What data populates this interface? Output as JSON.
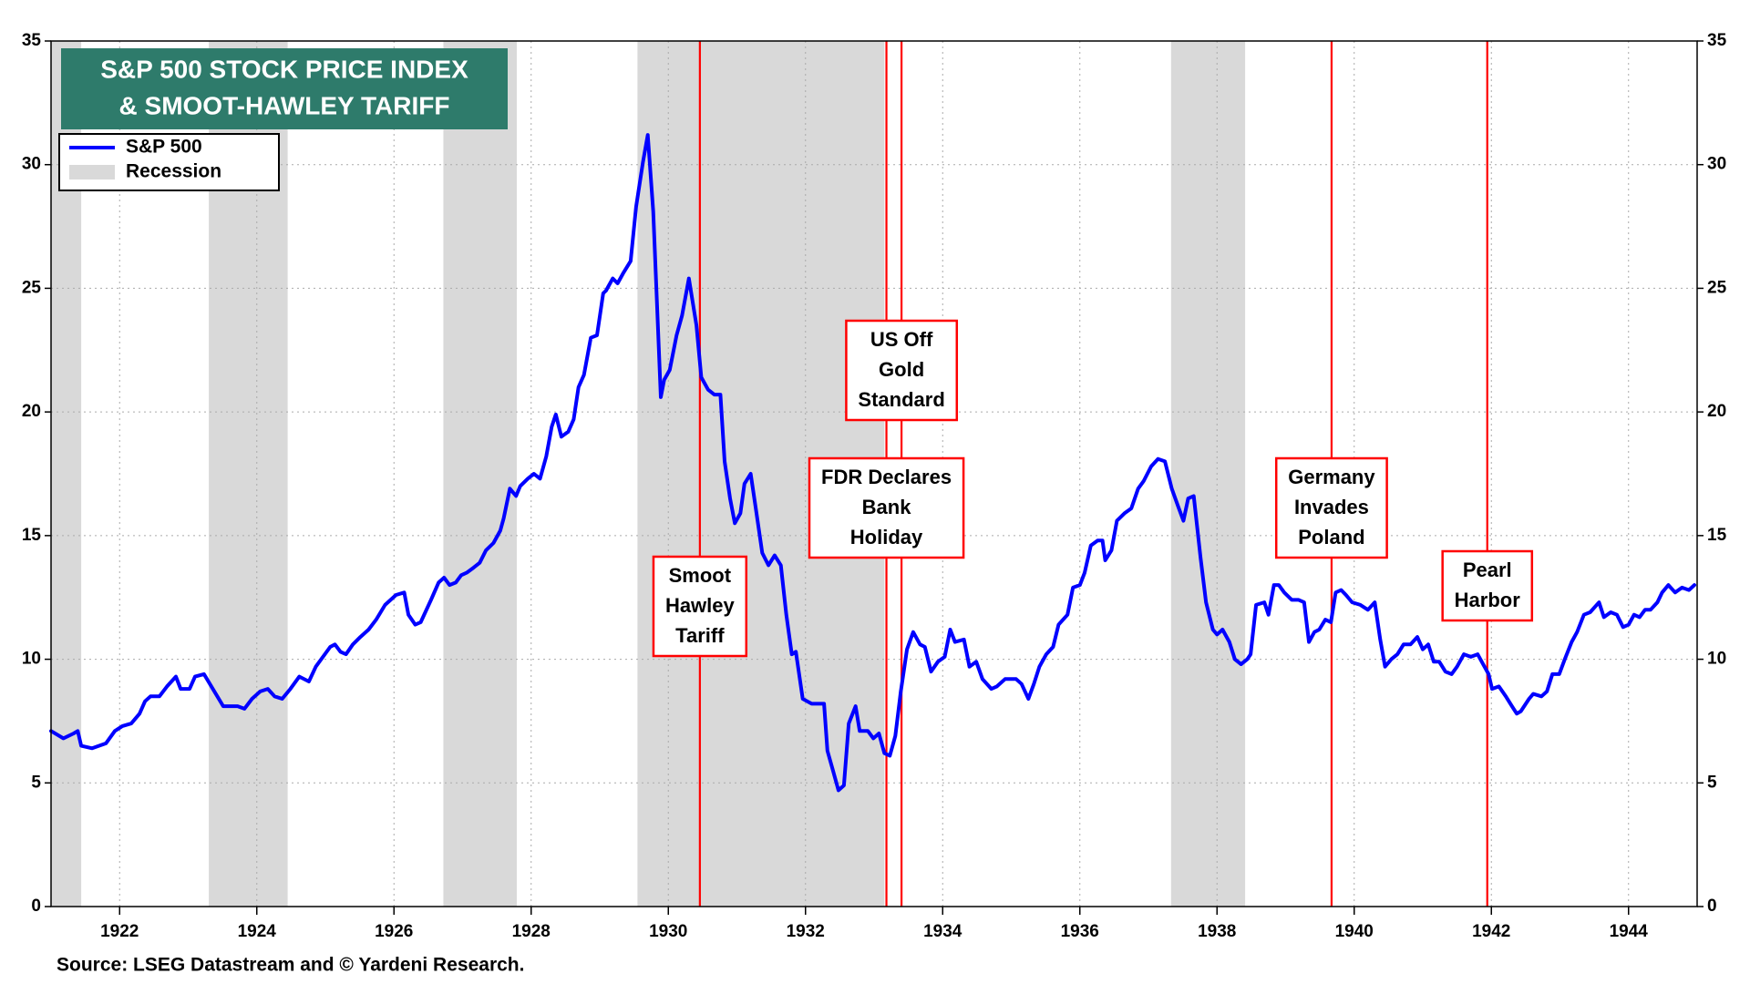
{
  "chart_data": {
    "type": "line",
    "title": [
      "S&P 500 STOCK PRICE INDEX",
      "& SMOOT-HAWLEY TARIFF"
    ],
    "source": "Source: LSEG Datastream and © Yardeni Research.",
    "xlim": [
      1921,
      1945
    ],
    "xticks": [
      1922,
      1924,
      1926,
      1928,
      1930,
      1932,
      1934,
      1936,
      1938,
      1940,
      1942,
      1944
    ],
    "ylim": [
      0,
      35
    ],
    "yticks": [
      0,
      5,
      10,
      15,
      20,
      25,
      30,
      35
    ],
    "grid": true,
    "legend": "top-left",
    "shaded_regions": {
      "name": "Recession",
      "color": "#d9d9d9",
      "ranges": [
        [
          1921.0,
          1921.44
        ],
        [
          1923.3,
          1924.45
        ],
        [
          1926.72,
          1927.79
        ],
        [
          1929.55,
          1933.15
        ],
        [
          1937.33,
          1938.41
        ]
      ]
    },
    "annotations": [
      {
        "lines": [
          "Smoot",
          "Hawley",
          "Tariff"
        ],
        "x": 1930.46,
        "color": "#ff0000"
      },
      {
        "lines": [
          "FDR Declares",
          "Bank",
          "Holiday"
        ],
        "x": 1933.18,
        "color": "#ff0000"
      },
      {
        "lines": [
          "US Off",
          "Gold",
          "Standard"
        ],
        "x": 1933.4,
        "color": "#ff0000"
      },
      {
        "lines": [
          "Germany",
          "Invades",
          "Poland"
        ],
        "x": 1939.67,
        "color": "#ff0000"
      },
      {
        "lines": [
          "Pearl",
          "Harbor"
        ],
        "x": 1941.94,
        "color": "#ff0000"
      }
    ],
    "x": [
      1921.0,
      1921.18,
      1921.33,
      1921.39,
      1921.44,
      1921.6,
      1921.8,
      1921.93,
      1922.04,
      1922.17,
      1922.29,
      1922.37,
      1922.45,
      1922.58,
      1922.69,
      1922.82,
      1922.89,
      1923.02,
      1923.1,
      1923.23,
      1923.51,
      1923.72,
      1923.82,
      1923.93,
      1924.05,
      1924.16,
      1924.26,
      1924.37,
      1924.49,
      1924.62,
      1924.76,
      1924.86,
      1925.07,
      1925.14,
      1925.22,
      1925.3,
      1925.4,
      1925.51,
      1925.63,
      1925.74,
      1925.87,
      1926.03,
      1926.15,
      1926.21,
      1926.31,
      1926.39,
      1926.54,
      1926.65,
      1926.73,
      1926.81,
      1926.9,
      1926.98,
      1927.06,
      1927.16,
      1927.25,
      1927.34,
      1927.45,
      1927.55,
      1927.6,
      1927.69,
      1927.78,
      1927.84,
      1927.95,
      1928.04,
      1928.13,
      1928.22,
      1928.3,
      1928.36,
      1928.44,
      1928.54,
      1928.62,
      1928.69,
      1928.77,
      1928.87,
      1928.96,
      1929.05,
      1929.09,
      1929.19,
      1929.26,
      1929.34,
      1929.45,
      1929.53,
      1929.63,
      1929.7,
      1929.78,
      1929.89,
      1929.94,
      1930.02,
      1930.12,
      1930.2,
      1930.3,
      1930.41,
      1930.48,
      1930.58,
      1930.67,
      1930.76,
      1930.82,
      1930.9,
      1930.97,
      1931.05,
      1931.11,
      1931.2,
      1931.28,
      1931.37,
      1931.46,
      1931.55,
      1931.64,
      1931.72,
      1931.8,
      1931.86,
      1931.96,
      1932.09,
      1932.27,
      1932.32,
      1932.4,
      1932.48,
      1932.56,
      1932.63,
      1932.73,
      1932.79,
      1932.91,
      1932.99,
      1933.07,
      1933.15,
      1933.23,
      1933.31,
      1933.39,
      1933.48,
      1933.57,
      1933.67,
      1933.74,
      1933.83,
      1933.93,
      1934.03,
      1934.11,
      1934.18,
      1934.31,
      1934.39,
      1934.49,
      1934.58,
      1934.71,
      1934.79,
      1934.91,
      1935.07,
      1935.15,
      1935.25,
      1935.33,
      1935.41,
      1935.51,
      1935.61,
      1935.69,
      1935.82,
      1935.9,
      1936.0,
      1936.07,
      1936.16,
      1936.26,
      1936.33,
      1936.37,
      1936.46,
      1936.54,
      1936.65,
      1936.75,
      1936.85,
      1936.93,
      1937.04,
      1937.14,
      1937.24,
      1937.34,
      1937.43,
      1937.51,
      1937.58,
      1937.66,
      1937.76,
      1937.84,
      1937.94,
      1938.0,
      1938.08,
      1938.18,
      1938.26,
      1938.35,
      1938.44,
      1938.49,
      1938.57,
      1938.69,
      1938.75,
      1938.83,
      1938.9,
      1938.98,
      1939.09,
      1939.19,
      1939.27,
      1939.34,
      1939.42,
      1939.49,
      1939.58,
      1939.66,
      1939.73,
      1939.81,
      1939.88,
      1939.97,
      1940.09,
      1940.2,
      1940.3,
      1940.38,
      1940.45,
      1940.54,
      1940.63,
      1940.72,
      1940.82,
      1940.92,
      1941.0,
      1941.08,
      1941.16,
      1941.24,
      1941.33,
      1941.42,
      1941.5,
      1941.6,
      1941.7,
      1941.8,
      1941.86,
      1941.96,
      1942.01,
      1942.11,
      1942.21,
      1942.3,
      1942.37,
      1942.43,
      1942.55,
      1942.61,
      1942.73,
      1942.81,
      1942.89,
      1942.99,
      1943.07,
      1943.17,
      1943.25,
      1943.35,
      1943.44,
      1943.57,
      1943.64,
      1943.74,
      1943.83,
      1943.92,
      1944.0,
      1944.08,
      1944.16,
      1944.24,
      1944.32,
      1944.42,
      1944.49,
      1944.58,
      1944.68,
      1944.78,
      1944.88,
      1944.96
    ],
    "series": [
      {
        "name": "S&P 500",
        "color": "#0000ff",
        "values": [
          7.1,
          6.8,
          7.0,
          7.1,
          6.5,
          6.4,
          6.6,
          7.1,
          7.3,
          7.4,
          7.8,
          8.3,
          8.5,
          8.5,
          8.9,
          9.3,
          8.8,
          8.8,
          9.3,
          9.4,
          8.1,
          8.1,
          8.0,
          8.4,
          8.7,
          8.8,
          8.5,
          8.4,
          8.8,
          9.3,
          9.1,
          9.7,
          10.5,
          10.6,
          10.3,
          10.2,
          10.6,
          10.9,
          11.2,
          11.6,
          12.2,
          12.6,
          12.7,
          11.8,
          11.4,
          11.5,
          12.4,
          13.1,
          13.3,
          13.0,
          13.1,
          13.4,
          13.5,
          13.7,
          13.9,
          14.4,
          14.7,
          15.2,
          15.7,
          16.9,
          16.6,
          17.0,
          17.3,
          17.5,
          17.3,
          18.2,
          19.4,
          19.9,
          19.0,
          19.2,
          19.7,
          21.0,
          21.5,
          23.0,
          23.1,
          24.8,
          24.9,
          25.4,
          25.2,
          25.6,
          26.1,
          28.3,
          30.1,
          31.2,
          28.1,
          20.6,
          21.3,
          21.7,
          23.1,
          23.9,
          25.4,
          23.5,
          21.4,
          20.9,
          20.7,
          20.7,
          18.0,
          16.5,
          15.5,
          15.9,
          17.1,
          17.5,
          16.0,
          14.3,
          13.8,
          14.2,
          13.8,
          11.8,
          10.2,
          10.3,
          8.4,
          8.2,
          8.2,
          6.3,
          5.5,
          4.7,
          4.9,
          7.4,
          8.1,
          7.1,
          7.1,
          6.8,
          7.0,
          6.2,
          6.1,
          6.9,
          8.7,
          10.4,
          11.1,
          10.6,
          10.5,
          9.5,
          9.9,
          10.1,
          11.2,
          10.7,
          10.8,
          9.7,
          9.9,
          9.2,
          8.8,
          8.9,
          9.2,
          9.2,
          9.0,
          8.4,
          9.0,
          9.7,
          10.2,
          10.5,
          11.4,
          11.8,
          12.9,
          13.0,
          13.5,
          14.6,
          14.8,
          14.8,
          14.0,
          14.4,
          15.6,
          15.9,
          16.1,
          16.9,
          17.2,
          17.8,
          18.1,
          18.0,
          16.9,
          16.2,
          15.6,
          16.5,
          16.6,
          14.1,
          12.3,
          11.2,
          11.0,
          11.2,
          10.7,
          10.0,
          9.8,
          10.0,
          10.2,
          12.2,
          12.3,
          11.8,
          13.0,
          13.0,
          12.7,
          12.4,
          12.4,
          12.3,
          10.7,
          11.1,
          11.2,
          11.6,
          11.5,
          12.7,
          12.8,
          12.6,
          12.3,
          12.2,
          12.0,
          12.3,
          10.8,
          9.7,
          10.0,
          10.2,
          10.6,
          10.6,
          10.9,
          10.4,
          10.6,
          9.9,
          9.9,
          9.5,
          9.4,
          9.7,
          10.2,
          10.1,
          10.2,
          9.9,
          9.4,
          8.8,
          8.9,
          8.5,
          8.1,
          7.8,
          7.9,
          8.4,
          8.6,
          8.5,
          8.7,
          9.4,
          9.4,
          10.0,
          10.7,
          11.1,
          11.8,
          11.9,
          12.3,
          11.7,
          11.9,
          11.8,
          11.3,
          11.4,
          11.8,
          11.7,
          12.0,
          12.0,
          12.3,
          12.7,
          13.0,
          12.7,
          12.9,
          12.8,
          13.0
        ]
      }
    ]
  }
}
